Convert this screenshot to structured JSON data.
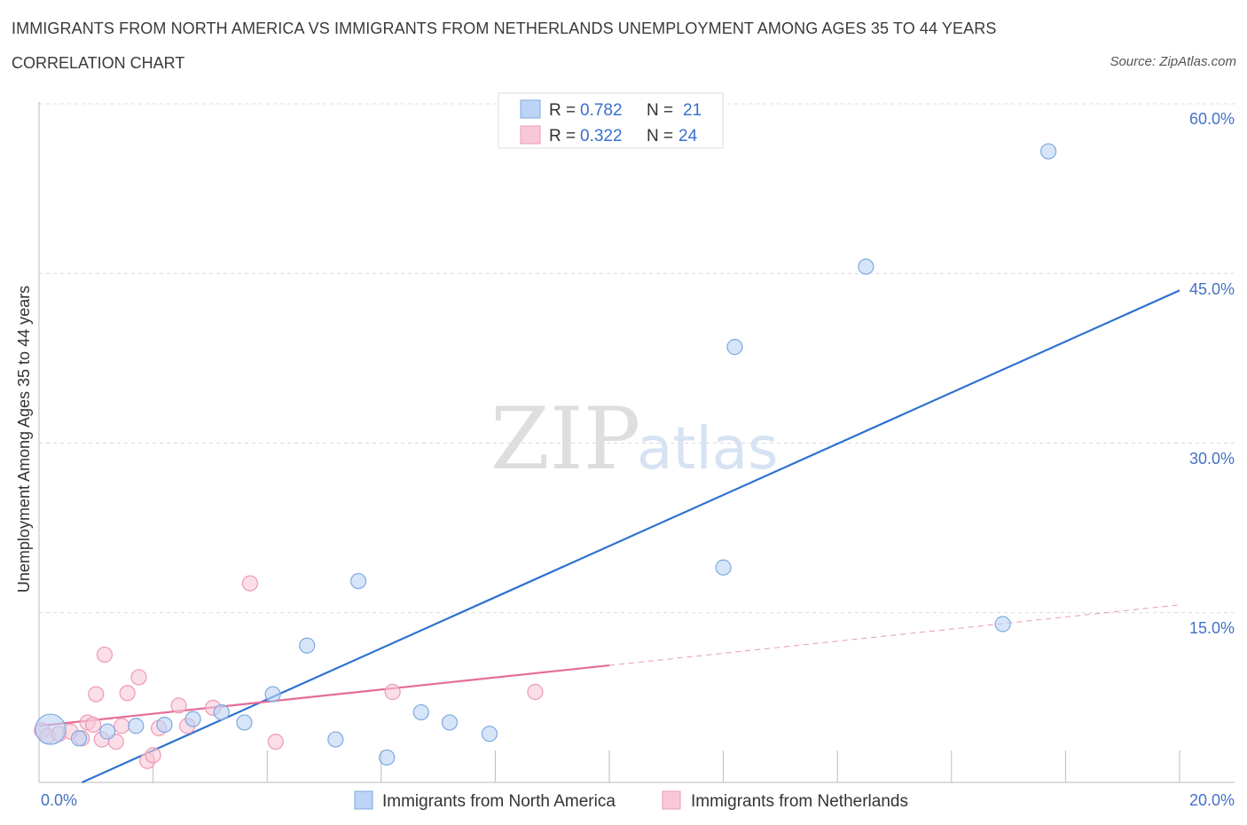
{
  "header": {
    "title": "IMMIGRANTS FROM NORTH AMERICA VS IMMIGRANTS FROM NETHERLANDS UNEMPLOYMENT AMONG AGES 35 TO 44 YEARS",
    "subtitle": "CORRELATION CHART",
    "source": "Source: ZipAtlas.com"
  },
  "watermark": {
    "zip": "ZIP",
    "atlas": "atlas"
  },
  "colors": {
    "blue_fill": "#bcd4f5",
    "blue_stroke": "#7ea9e0",
    "blue_line": "#2f72d1",
    "pink_fill": "#f9c8d7",
    "pink_stroke": "#ee9ab6",
    "pink_line": "#e46c98",
    "grid": "#dcdcdc",
    "tick_text": "#4472c4"
  },
  "legend": {
    "rows": [
      {
        "r_label": "R = ",
        "r_value": "0.782",
        "n_label": "N = ",
        "n_value": "21"
      },
      {
        "r_label": "R = ",
        "r_value": "0.322",
        "n_label": "N = ",
        "n_value": "24"
      }
    ]
  },
  "chart_data": {
    "type": "scatter",
    "title": "IMMIGRANTS FROM NORTH AMERICA VS IMMIGRANTS FROM NETHERLANDS UNEMPLOYMENT AMONG AGES 35 TO 44 YEARS",
    "xlabel": "",
    "ylabel": "Unemployment Among Ages 35 to 44 years",
    "xlim": [
      0,
      20
    ],
    "ylim": [
      0,
      60
    ],
    "x_tick_labels": [
      "0.0%",
      "20.0%"
    ],
    "y_tick_labels": [
      "15.0%",
      "30.0%",
      "45.0%",
      "60.0%"
    ],
    "y_ticks": [
      15,
      30,
      45,
      60
    ],
    "grid": true,
    "legend_position": "top-center",
    "series": [
      {
        "name": "Immigrants from North America",
        "R": 0.782,
        "N": 21,
        "points": [
          {
            "x": 0.2,
            "y": 4.7,
            "big": true
          },
          {
            "x": 0.7,
            "y": 3.9
          },
          {
            "x": 1.2,
            "y": 4.5
          },
          {
            "x": 1.7,
            "y": 5.0
          },
          {
            "x": 2.2,
            "y": 5.1
          },
          {
            "x": 2.7,
            "y": 5.6
          },
          {
            "x": 3.2,
            "y": 6.2
          },
          {
            "x": 3.6,
            "y": 5.3
          },
          {
            "x": 4.1,
            "y": 7.8
          },
          {
            "x": 4.7,
            "y": 12.1
          },
          {
            "x": 5.2,
            "y": 3.8
          },
          {
            "x": 5.6,
            "y": 17.8
          },
          {
            "x": 6.1,
            "y": 2.2
          },
          {
            "x": 6.7,
            "y": 6.2
          },
          {
            "x": 7.2,
            "y": 5.3
          },
          {
            "x": 7.9,
            "y": 4.3
          },
          {
            "x": 12.0,
            "y": 19.0
          },
          {
            "x": 12.2,
            "y": 38.5
          },
          {
            "x": 14.5,
            "y": 45.6
          },
          {
            "x": 16.9,
            "y": 14.0
          },
          {
            "x": 17.7,
            "y": 55.8
          }
        ],
        "trend": {
          "x0": 0.0,
          "y0": -1.7,
          "x1": 20.0,
          "y1": 43.5,
          "solid_to": 20.0
        }
      },
      {
        "name": "Immigrants from Netherlands",
        "R": 0.322,
        "N": 24,
        "points": [
          {
            "x": 0.05,
            "y": 4.6
          },
          {
            "x": 0.15,
            "y": 4.1
          },
          {
            "x": 0.35,
            "y": 4.3
          },
          {
            "x": 0.55,
            "y": 4.5
          },
          {
            "x": 0.75,
            "y": 3.9
          },
          {
            "x": 0.85,
            "y": 5.3
          },
          {
            "x": 0.95,
            "y": 5.1
          },
          {
            "x": 1.0,
            "y": 7.8
          },
          {
            "x": 1.1,
            "y": 3.8
          },
          {
            "x": 1.15,
            "y": 11.3
          },
          {
            "x": 1.35,
            "y": 3.6
          },
          {
            "x": 1.45,
            "y": 5.0
          },
          {
            "x": 1.55,
            "y": 7.9
          },
          {
            "x": 1.75,
            "y": 9.3
          },
          {
            "x": 1.9,
            "y": 1.9
          },
          {
            "x": 2.0,
            "y": 2.4
          },
          {
            "x": 2.1,
            "y": 4.8
          },
          {
            "x": 2.45,
            "y": 6.8
          },
          {
            "x": 2.6,
            "y": 5.0
          },
          {
            "x": 3.05,
            "y": 6.6
          },
          {
            "x": 3.7,
            "y": 17.6
          },
          {
            "x": 4.15,
            "y": 3.6
          },
          {
            "x": 6.2,
            "y": 8.0
          },
          {
            "x": 8.7,
            "y": 8.0
          }
        ],
        "trend": {
          "x0": 0.0,
          "y0": 5.0,
          "x1": 20.0,
          "y1": 15.7,
          "solid_to": 10.0
        }
      }
    ]
  }
}
